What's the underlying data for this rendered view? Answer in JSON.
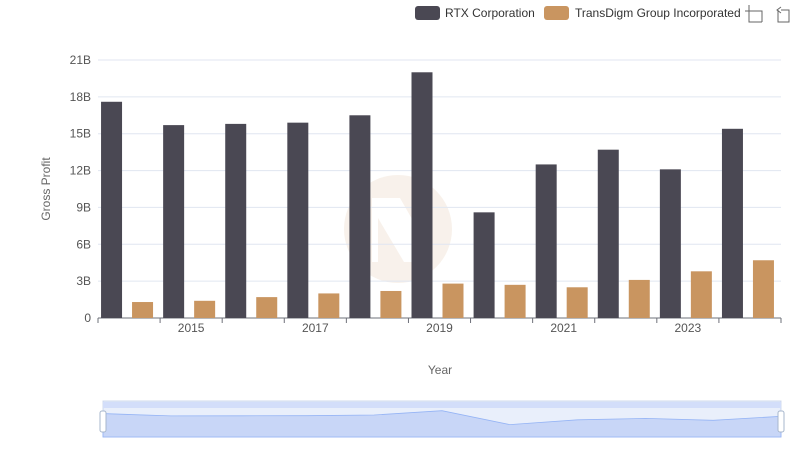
{
  "chart_data": {
    "type": "bar",
    "title": "",
    "xlabel": "Year",
    "ylabel": "Gross Profit",
    "categories": [
      "2014",
      "2015",
      "2016",
      "2017",
      "2018",
      "2019",
      "2020",
      "2021",
      "2022",
      "2023",
      "2024"
    ],
    "x_tick_labels": [
      "2015",
      "2017",
      "2019",
      "2021",
      "2023"
    ],
    "y_tick_labels": [
      "0",
      "3B",
      "6B",
      "9B",
      "12B",
      "15B",
      "18B",
      "21B"
    ],
    "y_ticks": [
      0,
      3,
      6,
      9,
      12,
      15,
      18,
      21
    ],
    "ylim": [
      0,
      21
    ],
    "y_unit": "billions",
    "grid": true,
    "legend_position": "top-right",
    "series": [
      {
        "name": "RTX Corporation",
        "color": "#4a4853",
        "values": [
          17.6,
          15.7,
          15.8,
          15.9,
          16.5,
          20.0,
          8.6,
          12.5,
          13.7,
          12.1,
          15.4
        ]
      },
      {
        "name": "TransDigm Group Incorporated",
        "color": "#c99560",
        "values": [
          1.3,
          1.4,
          1.7,
          2.0,
          2.2,
          2.8,
          2.7,
          2.5,
          3.1,
          3.8,
          4.7
        ]
      }
    ]
  },
  "toolbox": {
    "zoom_icon": "zoom-select-icon",
    "restore_icon": "restore-icon"
  },
  "watermark": {
    "icon": "brand-watermark-icon"
  },
  "data_zoom": {
    "start_percent": 0,
    "end_percent": 100,
    "handle_color": "#a7b7cc",
    "fill_color": "#d3defa"
  }
}
